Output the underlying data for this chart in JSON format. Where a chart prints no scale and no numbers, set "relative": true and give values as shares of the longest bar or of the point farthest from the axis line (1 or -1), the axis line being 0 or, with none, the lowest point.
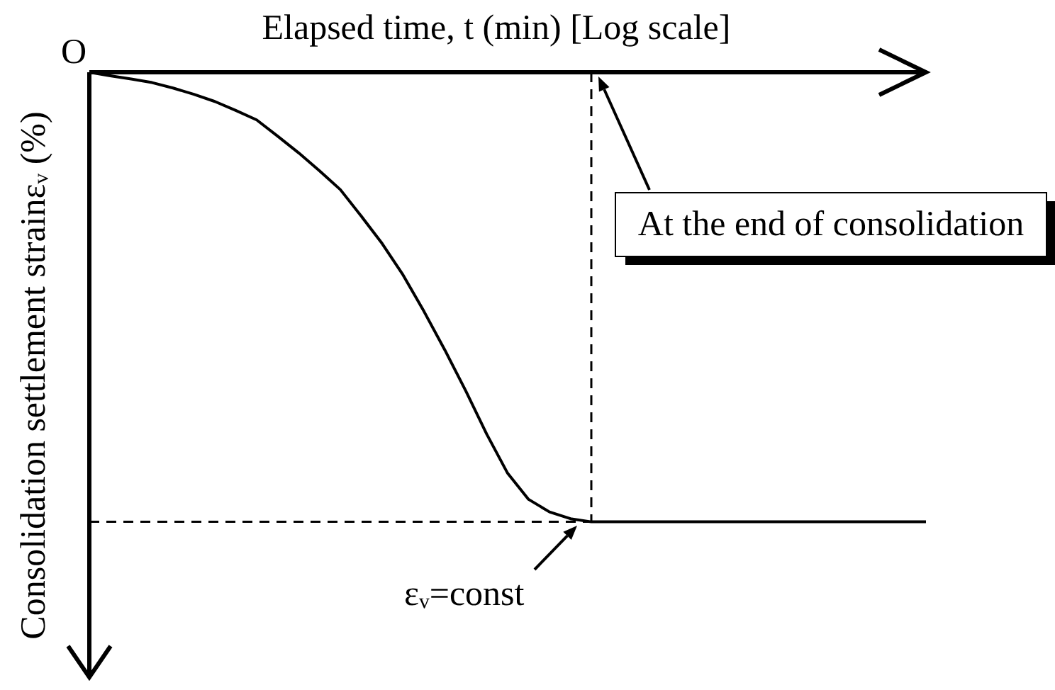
{
  "chart_data": {
    "type": "line",
    "xlabel": "Elapsed time, t (min) [Log scale]",
    "ylabel": "Consolidation settlement strainεᵥ (%)",
    "relative": true,
    "categories": [
      null,
      null,
      null,
      null,
      null,
      null,
      null,
      null,
      null,
      null,
      null,
      null,
      null,
      null,
      null,
      null,
      null,
      null,
      null,
      null,
      null,
      null,
      null,
      null,
      null,
      null,
      null,
      null,
      null,
      null,
      null,
      null,
      null,
      null,
      null,
      null,
      null,
      null,
      null,
      null,
      null
    ],
    "values": [
      0,
      -0.008,
      -0.015,
      -0.023,
      -0.035,
      -0.049,
      -0.065,
      -0.085,
      -0.106,
      -0.142,
      -0.179,
      -0.219,
      -0.261,
      -0.32,
      -0.381,
      -0.451,
      -0.532,
      -0.618,
      -0.709,
      -0.805,
      -0.892,
      -0.95,
      -0.978,
      -0.993,
      -1,
      -1,
      -1,
      -1,
      -1,
      -1,
      -1,
      -1,
      -1,
      -1,
      -1,
      -1,
      -1,
      -1,
      -1,
      -1,
      -1
    ],
    "color": "#000000",
    "annotations": [
      "O",
      "At the end of consolidation",
      "εᵥ=const"
    ]
  }
}
